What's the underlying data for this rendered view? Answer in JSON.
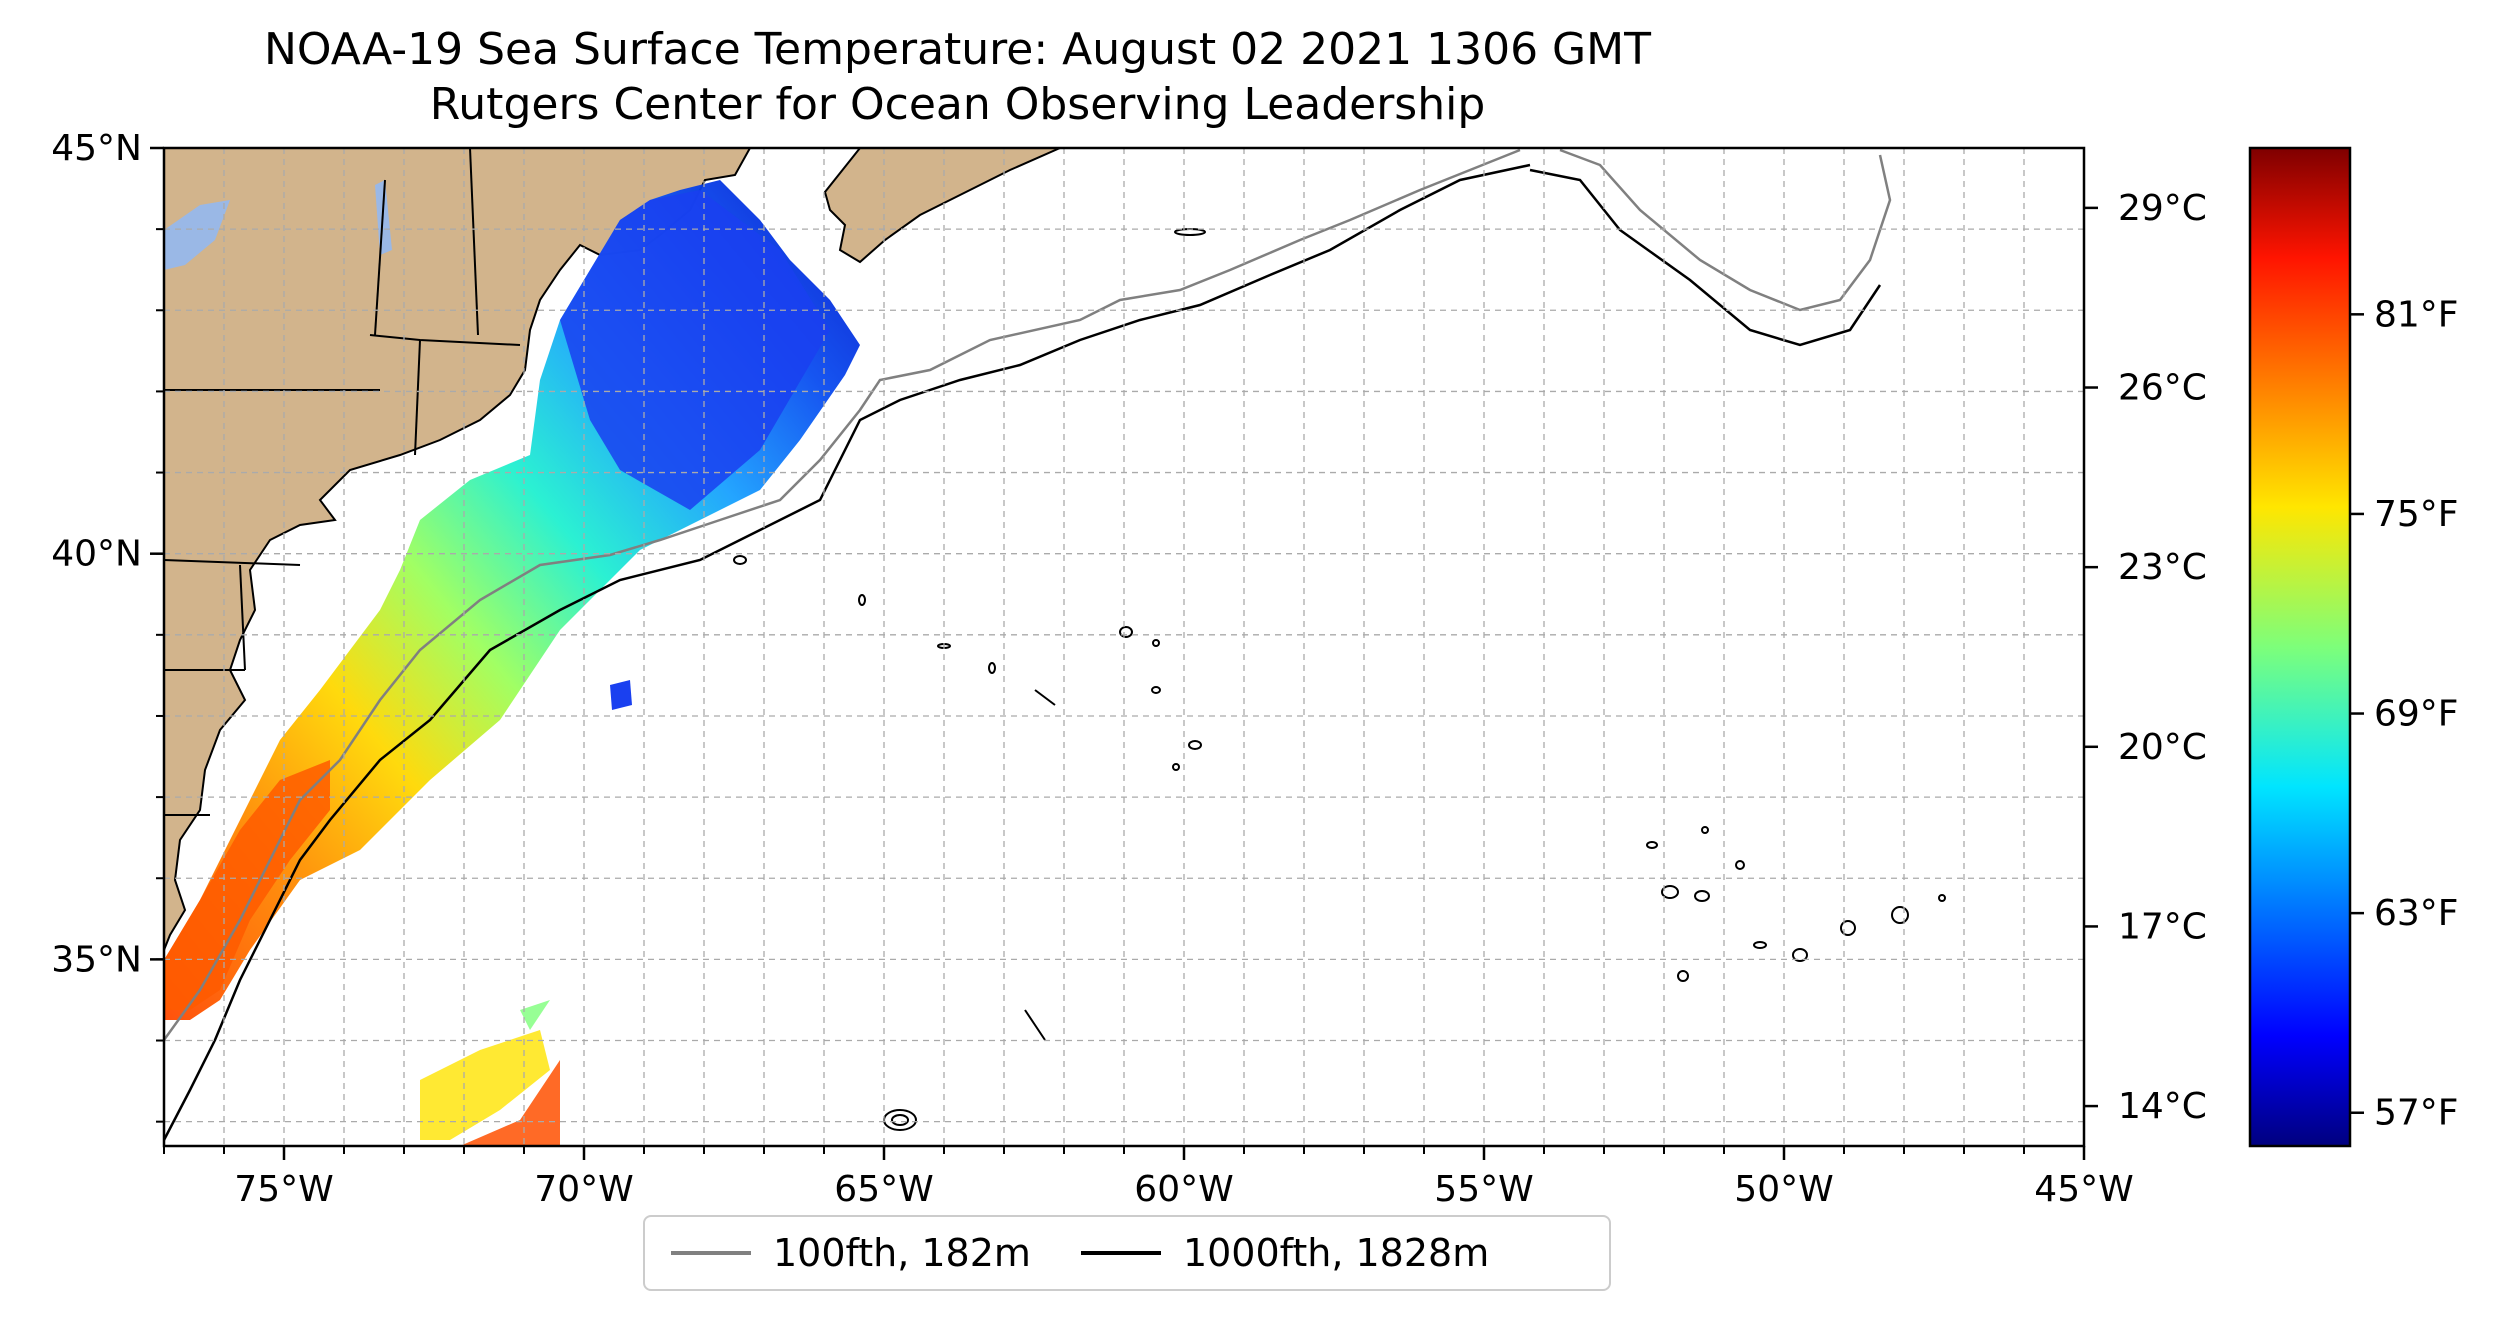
{
  "title": {
    "line1": "NOAA-19 Sea Surface Temperature: August 02 2021 1306 GMT",
    "line2": "Rutgers Center for Ocean Observing Leadership"
  },
  "map": {
    "lon_range": [
      -77,
      -45
    ],
    "lat_range": [
      32.7,
      45
    ],
    "lon_ticks": [
      {
        "value": -75,
        "label": "75°W"
      },
      {
        "value": -70,
        "label": "70°W"
      },
      {
        "value": -65,
        "label": "65°W"
      },
      {
        "value": -60,
        "label": "60°W"
      },
      {
        "value": -55,
        "label": "55°W"
      },
      {
        "value": -50,
        "label": "50°W"
      },
      {
        "value": -45,
        "label": "45°W"
      }
    ],
    "lat_ticks": [
      {
        "value": 45,
        "label": "45°N"
      },
      {
        "value": 40,
        "label": "40°N"
      },
      {
        "value": 35,
        "label": "35°N"
      }
    ],
    "gridlines": true,
    "land_color": "#d2b48c",
    "lake_color": "#9ab8e6"
  },
  "legend": {
    "items": [
      {
        "label": "100fth, 182m",
        "color": "#808080"
      },
      {
        "label": "1000fth, 1828m",
        "color": "#000000"
      }
    ],
    "placement": "bottom-center"
  },
  "colorbar": {
    "colormap": "jet",
    "celsius_ticks": [
      "29°C",
      "26°C",
      "23°C",
      "20°C",
      "17°C",
      "14°C"
    ],
    "fahrenheit_ticks": [
      "81°F",
      "75°F",
      "69°F",
      "63°F",
      "57°F"
    ],
    "range_f": [
      56,
      86
    ]
  }
}
